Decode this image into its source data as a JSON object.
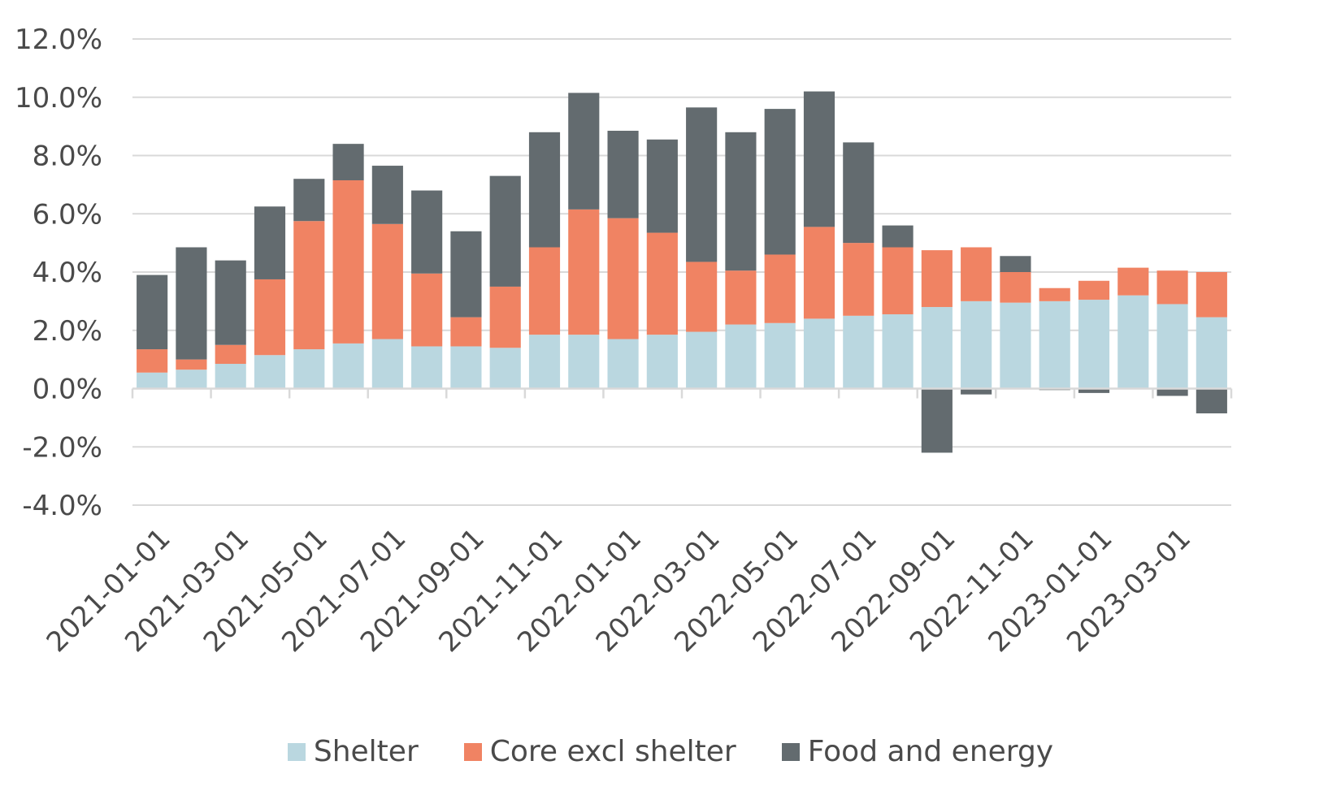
{
  "chart_data": {
    "type": "bar",
    "stacked": true,
    "title": "",
    "xlabel": "",
    "ylabel": "",
    "ylim": [
      -4.0,
      12.0
    ],
    "yticks": [
      "12.0%",
      "10.0%",
      "8.0%",
      "6.0%",
      "4.0%",
      "2.0%",
      "0.0%",
      "-2.0%",
      "-4.0%"
    ],
    "ytick_values": [
      12,
      10,
      8,
      6,
      4,
      2,
      0,
      -2,
      -4
    ],
    "grid": true,
    "legend_position": "bottom",
    "categories": [
      "2021-01-01",
      "2021-02-01",
      "2021-03-01",
      "2021-04-01",
      "2021-05-01",
      "2021-06-01",
      "2021-07-01",
      "2021-08-01",
      "2021-09-01",
      "2021-10-01",
      "2021-11-01",
      "2021-12-01",
      "2022-01-01",
      "2022-02-01",
      "2022-03-01",
      "2022-04-01",
      "2022-05-01",
      "2022-06-01",
      "2022-07-01",
      "2022-08-01",
      "2022-09-01",
      "2022-10-01",
      "2022-11-01",
      "2022-12-01",
      "2023-01-01",
      "2023-02-01",
      "2023-03-01",
      "2023-04-01"
    ],
    "xtick_labels": [
      "2021-01-01",
      "2021-03-01",
      "2021-05-01",
      "2021-07-01",
      "2021-09-01",
      "2021-11-01",
      "2022-01-01",
      "2022-03-01",
      "2022-05-01",
      "2022-07-01",
      "2022-09-01",
      "2022-11-01",
      "2023-01-01",
      "2023-03-01"
    ],
    "series": [
      {
        "name": "Shelter",
        "color": "#bad7e0",
        "values": [
          0.55,
          0.65,
          0.85,
          1.15,
          1.35,
          1.55,
          1.7,
          1.45,
          1.45,
          1.4,
          1.85,
          1.85,
          1.7,
          1.85,
          1.95,
          2.2,
          2.25,
          2.4,
          2.5,
          2.55,
          2.8,
          3.0,
          2.95,
          3.0,
          3.05,
          3.2,
          2.9,
          2.45
        ]
      },
      {
        "name": "Core excl shelter",
        "color": "#f08363",
        "values": [
          0.8,
          0.35,
          0.65,
          2.6,
          4.4,
          5.6,
          3.95,
          2.5,
          1.0,
          2.1,
          3.0,
          4.3,
          4.15,
          3.5,
          2.4,
          1.85,
          2.35,
          3.15,
          2.5,
          2.3,
          1.95,
          1.85,
          1.05,
          0.45,
          0.65,
          0.95,
          1.15,
          1.55
        ]
      },
      {
        "name": "Food and energy",
        "color": "#636b6f",
        "values": [
          2.55,
          3.85,
          2.9,
          2.5,
          1.45,
          1.25,
          2.0,
          2.85,
          2.95,
          3.8,
          3.95,
          4.0,
          3.0,
          3.2,
          5.3,
          4.75,
          5.0,
          4.65,
          3.45,
          0.75,
          -2.2,
          -0.2,
          0.55,
          -0.05,
          -0.15,
          0.0,
          -0.25,
          -0.85
        ]
      }
    ]
  }
}
